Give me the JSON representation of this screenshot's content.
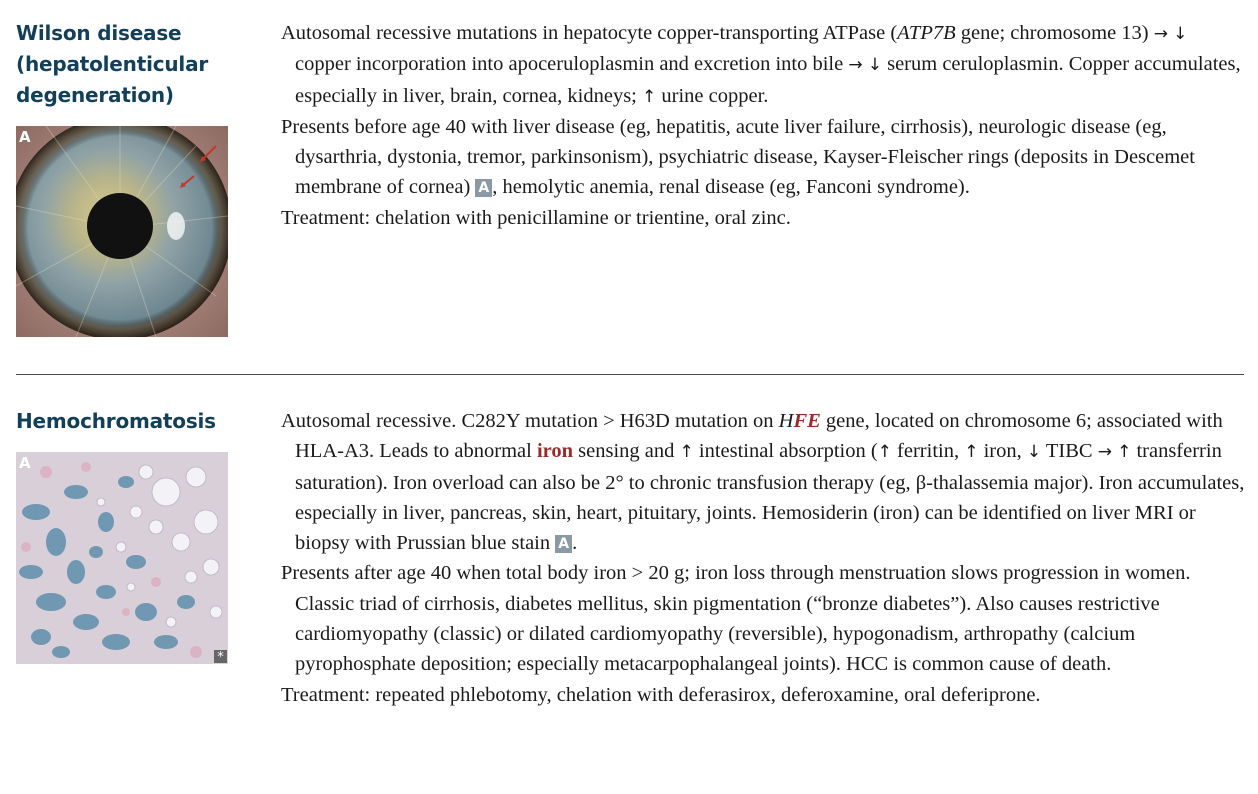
{
  "entries": [
    {
      "term": "Wilson disease (hepatolenticular degeneration)",
      "figure_label": "A",
      "paragraphs": {
        "p1": {
          "a": "Autosomal recessive mutations in hepatocyte copper-transporting ATPase (",
          "gene": "ATP7B",
          "b": " gene; chromosome 13) ",
          "c": " copper incorporation into apoceruloplasmin and excretion into bile ",
          "d": " serum ceruloplasmin. Copper accumulates, especially in liver, brain, cornea, kidneys; ",
          "e": " urine copper."
        },
        "p2": {
          "a": "Presents before age 40 with liver disease (eg, hepatitis, acute liver failure, cirrhosis), neurologic disease (eg, dysarthria, dystonia, tremor, parkinsonism), psychiatric disease, Kayser-Fleischer rings (deposits in Descemet membrane of cornea) ",
          "badge": "A",
          "b": ", hemolytic anemia, renal disease (eg, Fanconi syndrome)."
        },
        "p3": "Treatment: chelation with penicillamine or trientine, oral zinc."
      },
      "icons": [
        "right-arrow-icon",
        "down-arrow-icon",
        "up-arrow-icon"
      ]
    },
    {
      "term": "Hemochromatosis",
      "figure_label": "A",
      "figure_mark": "*",
      "paragraphs": {
        "p1": {
          "a": "Autosomal recessive. C282Y mutation > H63D mutation on ",
          "gene_h": "H",
          "gene_fe": "FE",
          "b": " gene, located on chromosome 6; associated with HLA-A3. Leads to abnormal ",
          "iron": "iron",
          "c": " sensing and ",
          "d": " intestinal absorption (",
          "e": " ferritin, ",
          "f": " iron, ",
          "g": " TIBC ",
          "h": " ",
          "i": " transferrin saturation). Iron overload can also be 2° to chronic transfusion therapy (eg, β-thalassemia major). Iron accumulates, especially in liver, pancreas, skin, heart, pituitary, joints. Hemosiderin (iron) can be identified on liver MRI or biopsy with Prussian blue stain ",
          "badge": "A",
          "j": "."
        },
        "p2": "Presents after age 40 when total body iron > 20 g; iron loss through menstruation slows progression in women. Classic triad of cirrhosis, diabetes mellitus, skin pigmentation (“bronze diabetes”). Also causes restrictive cardiomyopathy (classic) or dilated cardiomyopathy (reversible), hypogonadism, arthropathy (calcium pyrophosphate deposition; especially metacarpophalangeal joints). HCC is common cause of death.",
        "p3": "Treatment: repeated phlebotomy, chelation with deferasirox, deferoxamine, oral deferiprone."
      }
    }
  ],
  "colors": {
    "term": "#123f5a",
    "highlight": "#9b2a2a",
    "badge": "#8a9aa4"
  }
}
